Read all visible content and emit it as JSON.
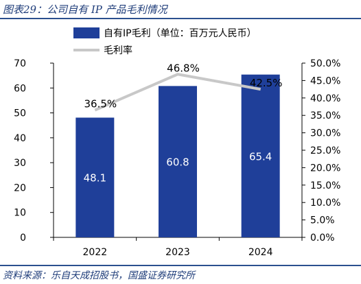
{
  "header": {
    "title": "图表29：公司自有 IP 产品毛利情况"
  },
  "footer": {
    "source": "资料来源：乐自天成招股书，国盛证券研究所"
  },
  "chart_data": {
    "type": "bar",
    "categories": [
      "2022",
      "2023",
      "2024"
    ],
    "series": [
      {
        "name": "自有IP毛利（单位：百万元人民币）",
        "kind": "bar",
        "axis": "left",
        "values": [
          48.1,
          60.8,
          65.4
        ],
        "labels": [
          "48.1",
          "60.8",
          "65.4"
        ],
        "color": "#1f3f99"
      },
      {
        "name": "毛利率",
        "kind": "line",
        "axis": "right",
        "values": [
          36.5,
          46.8,
          42.5
        ],
        "labels": [
          "36.5%",
          "46.8%",
          "42.5%"
        ],
        "color": "#c8c8c8"
      }
    ],
    "left_axis": {
      "ylim": [
        0,
        70
      ],
      "ticks": [
        "0",
        "10",
        "20",
        "30",
        "40",
        "50",
        "60",
        "70"
      ]
    },
    "right_axis": {
      "ylim": [
        0,
        50
      ],
      "ticks": [
        "0.0%",
        "5.0%",
        "10.0%",
        "15.0%",
        "20.0%",
        "25.0%",
        "30.0%",
        "35.0%",
        "40.0%",
        "45.0%",
        "50.0%"
      ]
    },
    "legend": "top",
    "grid": false
  }
}
